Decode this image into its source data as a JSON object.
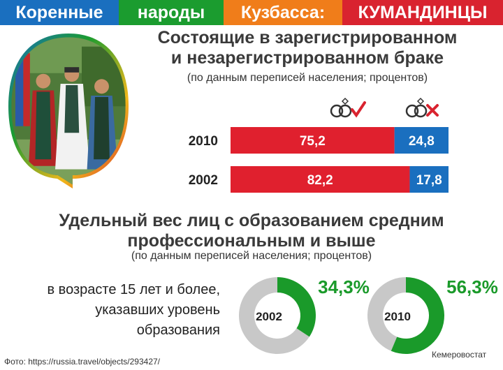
{
  "banner": [
    {
      "text": "Коренные",
      "color": "#1a6fbf",
      "width": 170
    },
    {
      "text": "народы",
      "color": "#1b9c2f",
      "width": 150
    },
    {
      "text": "Кузбасса:",
      "color": "#f07d1a",
      "width": 170
    },
    {
      "text": "КУМАНДИНЦЫ",
      "color": "#d9232f",
      "width": 230
    }
  ],
  "section1": {
    "title_line1": "Состоящие в зарегистрированном",
    "title_line2": "и незарегистрированном браке",
    "subtitle": "(по данным переписей населения; процентов)"
  },
  "section2": {
    "title_line1": "Удельный вес лиц с образованием средним",
    "title_line2": "профессиональным и выше",
    "subtitle": "(по данным переписей населения; процентов)",
    "note_lines": [
      "в возрасте 15 лет и более,",
      "указавших уровень",
      "образования"
    ]
  },
  "colors": {
    "red": "#e0202e",
    "blue": "#1a6fbf",
    "green": "#1a9a2a",
    "gray": "#c8c8c8",
    "check": "#d9232f",
    "cross": "#d9232f"
  },
  "icons": {
    "registered": "rings-check-icon",
    "unregistered": "rings-cross-icon"
  },
  "footer": {
    "source_photo": "Фото: https://russia.travel/objects/293427/",
    "publisher": "Кемеровостат"
  },
  "chart_data": [
    {
      "type": "bar",
      "orientation": "horizontal",
      "stacked": true,
      "categories": [
        "2010",
        "2002"
      ],
      "series": [
        {
          "values": [
            75.2,
            82.2
          ],
          "labels": [
            "75,2",
            "82,2"
          ],
          "color": "#e0202e"
        },
        {
          "values": [
            24.8,
            17.8
          ],
          "labels": [
            "24,8",
            "17,8"
          ],
          "color": "#1a6fbf"
        }
      ],
      "xlim": [
        0,
        100
      ]
    },
    {
      "type": "pie",
      "donut": true,
      "charts": [
        {
          "center_label": "2002",
          "value": 34.3,
          "value_label": "34,3%"
        },
        {
          "center_label": "2010",
          "value": 56.3,
          "value_label": "56,3%"
        }
      ]
    }
  ]
}
